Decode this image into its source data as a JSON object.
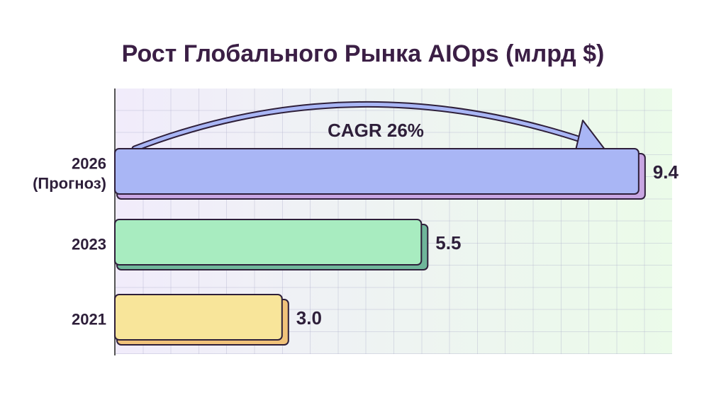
{
  "chart_data": {
    "type": "bar",
    "orientation": "horizontal",
    "title": "Рост Глобального Рынка AIOps (млрд $)",
    "categories": [
      "2026\n(Прогноз)",
      "2023",
      "2021"
    ],
    "values": [
      9.4,
      5.5,
      3.0
    ],
    "value_labels": [
      "9.4",
      "5.5",
      "3.0"
    ],
    "colors": [
      "#a9b6f5",
      "#a8ecc0",
      "#f8e59a"
    ],
    "shadow_colors": [
      "#c8a6e2",
      "#6fb59a",
      "#f0c27a"
    ],
    "xlim": [
      0,
      10
    ],
    "annotation": "CAGR 26%"
  }
}
